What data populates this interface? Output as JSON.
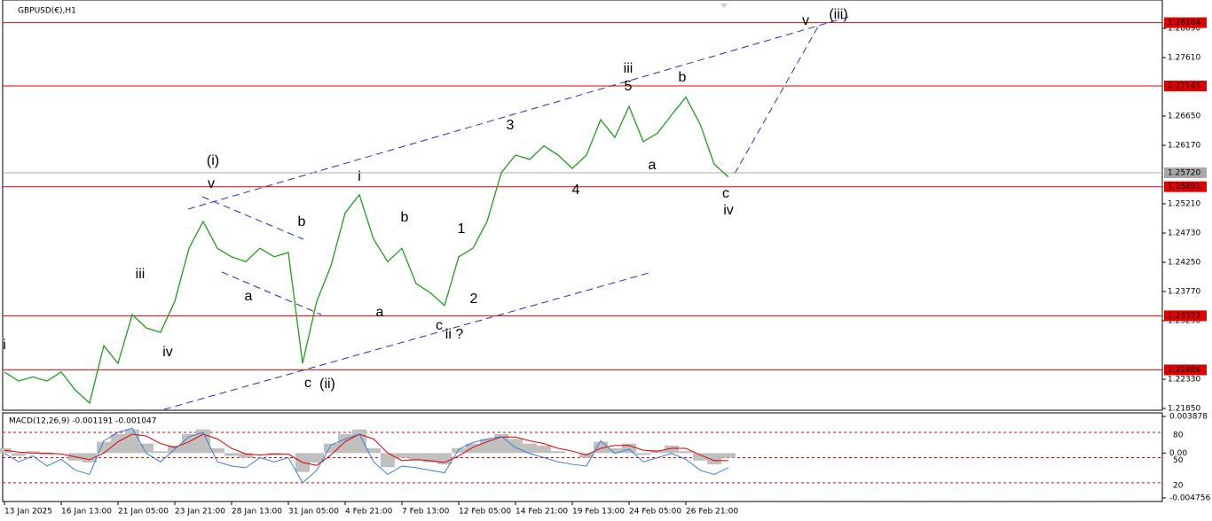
{
  "chart_data": [
    {
      "type": "line",
      "title": "GBPUSD(€),H1",
      "color": "#1e9e1e",
      "categories": [
        "13 Jan 2025",
        null,
        null,
        null,
        "16 Jan 13:00",
        null,
        null,
        null,
        "21 Jan 05:00",
        null,
        null,
        null,
        "23 Jan 21:00",
        null,
        null,
        null,
        "28 Jan 13:00",
        null,
        null,
        null,
        "31 Jan 05:00",
        null,
        null,
        null,
        "4 Feb 21:00",
        null,
        null,
        null,
        "7 Feb 13:00",
        null,
        null,
        null,
        "12 Feb 05:00",
        null,
        null,
        null,
        "14 Feb 21:00",
        null,
        null,
        null,
        "19 Feb 13:00",
        null,
        null,
        null,
        "24 Feb 05:00",
        null,
        null,
        null,
        "26 Feb 21:00",
        null,
        null,
        null
      ],
      "values": [
        1.2245,
        1.223,
        1.2237,
        1.223,
        1.2245,
        1.2215,
        1.2194,
        1.2288,
        1.2259,
        1.2339,
        1.2317,
        1.231,
        1.2361,
        1.2448,
        1.2492,
        1.2448,
        1.2434,
        1.2426,
        1.2448,
        1.2434,
        1.2441,
        1.2259,
        1.2361,
        1.2419,
        1.2506,
        1.2536,
        1.2463,
        1.2426,
        1.2448,
        1.239,
        1.2375,
        1.2354,
        1.2434,
        1.2448,
        1.2492,
        1.2572,
        1.2601,
        1.2594,
        1.2616,
        1.2601,
        1.2579,
        1.2601,
        1.2659,
        1.263,
        1.2681,
        1.2623,
        1.2637,
        1.2667,
        1.2696,
        1.2652,
        1.2586,
        1.2565
      ],
      "ylim": [
        1.21821,
        1.28556
      ],
      "yticks": [
        {
          "value": 1.2809,
          "label": "1.28090"
        },
        {
          "value": 1.2761,
          "label": "1.27610"
        },
        {
          "value": 1.2665,
          "label": "1.26650"
        },
        {
          "value": 1.2617,
          "label": "1.26170"
        },
        {
          "value": 1.2521,
          "label": "1.25210"
        },
        {
          "value": 1.2473,
          "label": "1.24730"
        },
        {
          "value": 1.2425,
          "label": "1.24250"
        },
        {
          "value": 1.2377,
          "label": "1.23770"
        },
        {
          "value": 1.2329,
          "label": "1.23290"
        },
        {
          "value": 1.2233,
          "label": "1.22330"
        },
        {
          "value": 1.2185,
          "label": "1.21850"
        }
      ],
      "hlines": [
        {
          "value": 1.28184,
          "color": "#e00000"
        },
        {
          "value": 1.27145,
          "color": "#e00000"
        },
        {
          "value": 1.2572,
          "label": "1.25720",
          "color": "#a8a8a8"
        },
        {
          "value": 1.25491,
          "color": "#e00000"
        },
        {
          "value": 1.23372,
          "color": "#e00000"
        },
        {
          "value": 1.22484,
          "color": "#e00000"
        }
      ],
      "annotations": [
        {
          "text": "i",
          "color": "#e020e0"
        },
        {
          "text": "iii",
          "color": "#e020e0"
        },
        {
          "text": "iv",
          "color": "#e020e0"
        },
        {
          "text": "(i)",
          "color": "#1a1aa0"
        },
        {
          "text": "v",
          "color": "#e020e0"
        },
        {
          "text": "a",
          "color": "#e020e0"
        },
        {
          "text": "b",
          "color": "#e020e0"
        },
        {
          "text": "c",
          "color": "#e020e0"
        },
        {
          "text": "(ii)",
          "color": "#1a1aa0"
        },
        {
          "text": "i",
          "color": "#e020e0"
        },
        {
          "text": "b",
          "color": "#000000"
        },
        {
          "text": "a",
          "color": "#000000"
        },
        {
          "text": "c",
          "color": "#000000"
        },
        {
          "text": "ii ?",
          "color": "#e020e0"
        },
        {
          "text": "1",
          "color": "#000000"
        },
        {
          "text": "2",
          "color": "#000000"
        },
        {
          "text": "3",
          "color": "#000000"
        },
        {
          "text": "4",
          "color": "#000000"
        },
        {
          "text": "iii",
          "color": "#e020e0"
        },
        {
          "text": "5",
          "color": "#000000"
        },
        {
          "text": "a",
          "color": "#000000"
        },
        {
          "text": "b",
          "color": "#000000"
        },
        {
          "text": "c",
          "color": "#000000"
        },
        {
          "text": "iv",
          "color": "#e020e0"
        },
        {
          "text": "v",
          "color": "#e020e0"
        },
        {
          "text": "(iii)",
          "color": "#1a1aa0"
        }
      ]
    },
    {
      "type": "macd",
      "title": "MACD(12,26,9) -0.001191 -0.001047",
      "ylim": [
        -0.004756,
        0.003878
      ],
      "yticks": [
        {
          "value": 0.003878,
          "label": "0.003878"
        },
        {
          "value": 0,
          "label": "0.00"
        },
        {
          "value": -0.004756,
          "label": "-0.004756"
        }
      ],
      "y2lim": [
        2,
        99
      ],
      "y2ticks": [
        80,
        50,
        20
      ],
      "series": [
        {
          "color": "#c0c0c0",
          "values": [
            0.0005,
            -0.0003,
            0.0002,
            -0.0002,
            0.0,
            -0.0008,
            -0.001,
            0.0012,
            0.002,
            0.0025,
            0.001,
            0.0002,
            0.0008,
            0.002,
            0.0025,
            0.0005,
            -0.0003,
            -0.0005,
            0.0,
            -0.0002,
            0.0,
            -0.002,
            -0.001,
            0.001,
            0.002,
            0.0025,
            0.0005,
            -0.0015,
            -0.0005,
            -0.0008,
            -0.001,
            -0.0012,
            0.0005,
            0.001,
            0.0015,
            0.002,
            0.0015,
            0.001,
            0.0008,
            0.0002,
            0.0,
            -0.0005,
            0.0012,
            0.0005,
            0.001,
            -0.0002,
            0.0003,
            0.0008,
            0.0002,
            -0.0008,
            -0.0012,
            -0.0005
          ]
        },
        {
          "color": "#e00000",
          "values": [
            0.0003,
            0.0001,
            0.0,
            0.0,
            -0.0001,
            -0.0004,
            -0.0007,
            0.0,
            0.0012,
            0.002,
            0.0018,
            0.001,
            0.0006,
            0.0012,
            0.002,
            0.0015,
            0.0005,
            -0.0001,
            -0.0002,
            -0.0001,
            -0.0001,
            -0.001,
            -0.0013,
            -0.0002,
            0.0012,
            0.002,
            0.0015,
            0.0,
            -0.0008,
            -0.0007,
            -0.0008,
            -0.001,
            -0.0003,
            0.0006,
            0.0012,
            0.0017,
            0.0017,
            0.0013,
            0.001,
            0.0005,
            0.0002,
            -0.0002,
            0.0005,
            0.0008,
            0.0008,
            0.0003,
            0.0002,
            0.0005,
            0.0005,
            -0.0002,
            -0.0008,
            -0.0008
          ]
        },
        {
          "color": "#3a7fd9",
          "axis": "y2",
          "values": [
            55,
            45,
            52,
            40,
            48,
            35,
            30,
            70,
            80,
            85,
            55,
            45,
            60,
            75,
            80,
            45,
            40,
            38,
            50,
            45,
            50,
            20,
            35,
            65,
            72,
            78,
            45,
            30,
            40,
            38,
            35,
            32,
            60,
            68,
            72,
            75,
            62,
            55,
            50,
            45,
            42,
            40,
            70,
            55,
            60,
            45,
            50,
            55,
            48,
            35,
            30,
            38
          ]
        }
      ]
    }
  ]
}
